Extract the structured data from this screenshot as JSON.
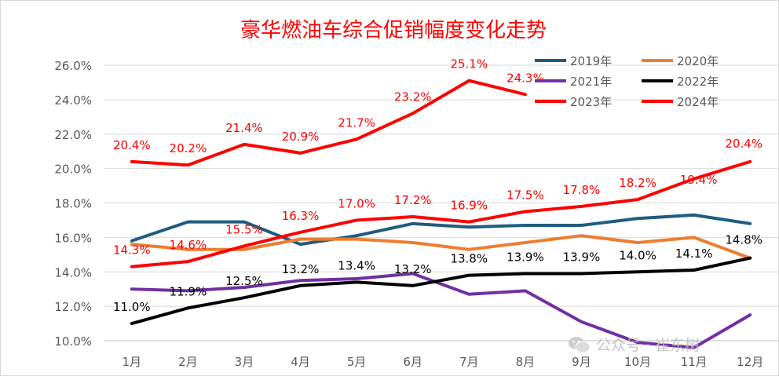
{
  "chart_data": {
    "type": "line",
    "title": "豪华燃油车综合促销幅度变化走势",
    "categories": [
      "1月",
      "2月",
      "3月",
      "4月",
      "5月",
      "6月",
      "7月",
      "8月",
      "9月",
      "10月",
      "11月",
      "12月"
    ],
    "ylim": [
      10,
      26
    ],
    "yticks": [
      "10.0%",
      "12.0%",
      "14.0%",
      "16.0%",
      "18.0%",
      "20.0%",
      "22.0%",
      "24.0%",
      "26.0%"
    ],
    "grid": true,
    "legend_position": "top-right",
    "series": [
      {
        "name": "2019年",
        "color": "#1f5c7f",
        "values": [
          15.8,
          16.9,
          16.9,
          15.6,
          16.1,
          16.8,
          16.6,
          16.7,
          16.7,
          17.1,
          17.3,
          16.8
        ],
        "labels": null
      },
      {
        "name": "2020年",
        "color": "#ed7d31",
        "values": [
          15.6,
          15.3,
          15.3,
          15.9,
          15.9,
          15.7,
          15.3,
          15.7,
          16.1,
          15.7,
          16.0,
          14.8
        ],
        "labels": null
      },
      {
        "name": "2021年",
        "color": "#7030a0",
        "values": [
          13.0,
          12.9,
          13.1,
          13.5,
          13.6,
          13.9,
          12.7,
          12.9,
          11.1,
          9.9,
          9.6,
          11.5
        ],
        "labels": null
      },
      {
        "name": "2022年",
        "color": "#000000",
        "values": [
          11.0,
          11.9,
          12.5,
          13.2,
          13.4,
          13.2,
          13.8,
          13.9,
          13.9,
          14.0,
          14.1,
          14.8
        ],
        "labels": [
          "11.0%",
          "11.9%",
          "12.5%",
          "13.2%",
          "13.4%",
          "13.2%",
          "13.8%",
          "13.9%",
          "13.9%",
          "14.0%",
          "14.1%",
          "14.8%"
        ],
        "label_color": "#000000"
      },
      {
        "name": "2023年",
        "color": "#ff0000",
        "values": [
          14.3,
          14.6,
          15.5,
          16.3,
          17.0,
          17.2,
          16.9,
          17.5,
          17.8,
          18.2,
          19.4,
          20.4
        ],
        "labels": [
          "14.3%",
          "14.6%",
          "15.5%",
          "16.3%",
          "17.0%",
          "17.2%",
          "16.9%",
          "17.5%",
          "17.8%",
          "18.2%",
          "19.4%",
          "20.4%"
        ],
        "label_color": "#ff0000"
      },
      {
        "name": "2024年",
        "color": "#ff0000",
        "values": [
          20.4,
          20.2,
          21.4,
          20.9,
          21.7,
          23.2,
          25.1,
          24.3,
          null,
          null,
          null,
          null
        ],
        "labels": [
          "20.4%",
          "20.2%",
          "21.4%",
          "20.9%",
          "21.7%",
          "23.2%",
          "25.1%",
          "24.3%",
          null,
          null,
          null,
          null
        ],
        "label_color": "#ff0000"
      }
    ]
  },
  "watermark": {
    "text": "公众号 · 崔东树",
    "icon": "wechat-icon"
  }
}
